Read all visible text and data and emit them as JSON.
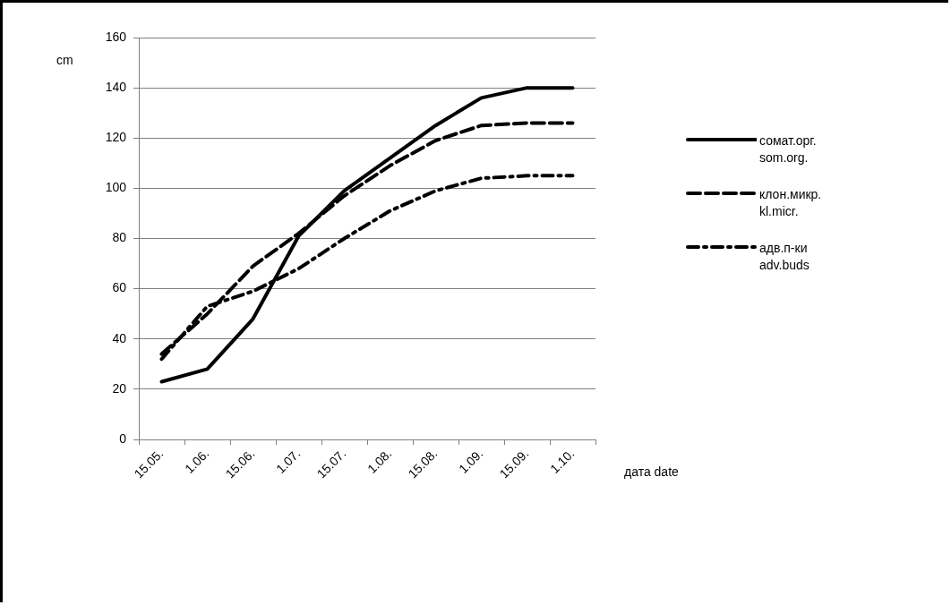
{
  "chart_data": {
    "type": "line",
    "ylabel": "cm",
    "xlabel": "дата date",
    "categories": [
      "15.05.",
      "1.06.",
      "15.06.",
      "1.07.",
      "15.07.",
      "1.08.",
      "15.08.",
      "1.09.",
      "15.09.",
      "1.10."
    ],
    "series": [
      {
        "name": "сомат.орг. som.org.",
        "color": "#000000",
        "line_style": "solid",
        "values": [
          23,
          28,
          48,
          81,
          99,
          112,
          125,
          136,
          140,
          140
        ]
      },
      {
        "name": "клон.микр. kl.micr.",
        "color": "#000000",
        "line_style": "dashed",
        "values": [
          34,
          50,
          69,
          82,
          97,
          109,
          119,
          125,
          126,
          126
        ]
      },
      {
        "name": "адв.п-ки adv.buds",
        "color": "#000000",
        "line_style": "dashdot",
        "values": [
          32,
          53,
          59,
          68,
          80,
          91,
          99,
          104,
          105,
          105
        ]
      }
    ],
    "ylim": [
      0,
      160
    ],
    "yticks": [
      0,
      20,
      40,
      60,
      80,
      100,
      120,
      140,
      160
    ],
    "grid": "y",
    "legend": "right",
    "marker": "none"
  }
}
